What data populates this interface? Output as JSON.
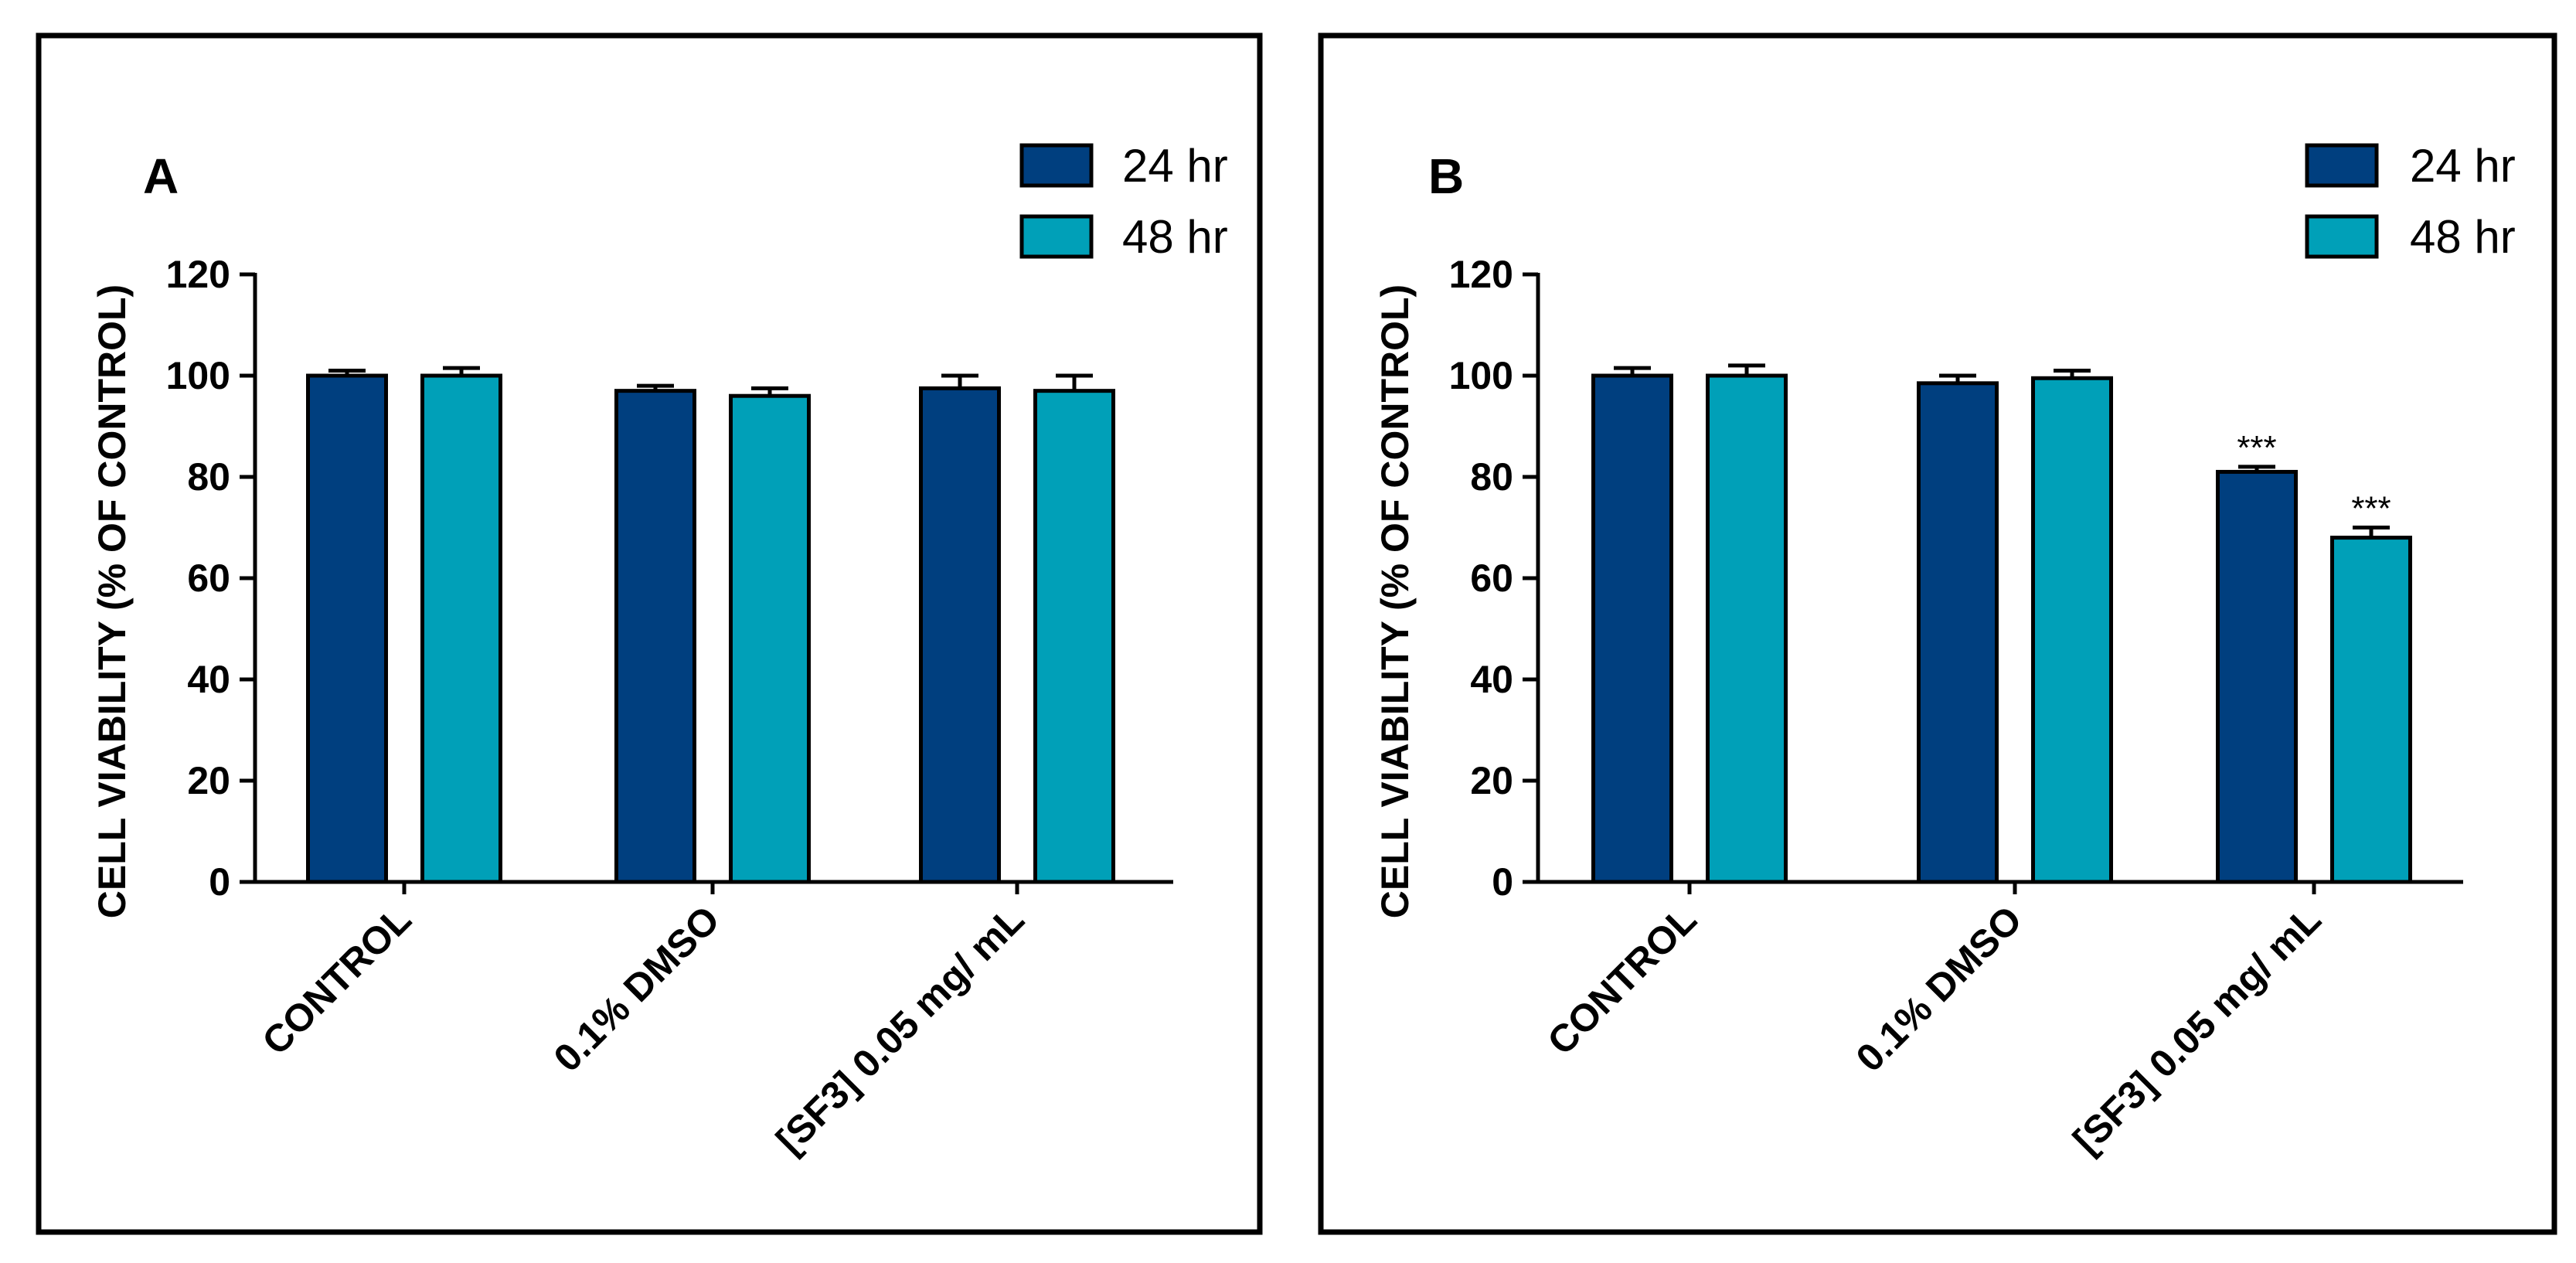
{
  "chart_data": [
    {
      "type": "bar",
      "panel": "A",
      "ylabel": "CELL VIABILITY (% OF CONTROL)",
      "xlabel": "",
      "ylim": [
        0,
        120
      ],
      "yticks": [
        0,
        20,
        40,
        60,
        80,
        100,
        120
      ],
      "categories": [
        "CONTROL",
        "0.1% DMSO",
        "[SF3] 0.05 mg/ mL"
      ],
      "series": [
        {
          "name": "24 hr",
          "values": [
            100,
            97,
            97.5
          ],
          "errors": [
            1,
            1,
            2.5
          ],
          "color": "#003f7f",
          "annotations": [
            "",
            "",
            ""
          ]
        },
        {
          "name": "48 hr",
          "values": [
            100,
            96,
            97
          ],
          "errors": [
            1.5,
            1.5,
            3
          ],
          "color": "#00a0b8",
          "annotations": [
            "",
            "",
            ""
          ]
        }
      ],
      "legend_position": "top-right"
    },
    {
      "type": "bar",
      "panel": "B",
      "ylabel": "CELL VIABILITY (% OF CONTROL)",
      "xlabel": "",
      "ylim": [
        0,
        120
      ],
      "yticks": [
        0,
        20,
        40,
        60,
        80,
        100,
        120
      ],
      "categories": [
        "CONTROL",
        "0.1% DMSO",
        "[SF3] 0.05 mg/ mL"
      ],
      "series": [
        {
          "name": "24 hr",
          "values": [
            100,
            98.5,
            81
          ],
          "errors": [
            1.5,
            1.5,
            1
          ],
          "color": "#003f7f",
          "annotations": [
            "",
            "",
            "***"
          ]
        },
        {
          "name": "48 hr",
          "values": [
            100,
            99.5,
            68
          ],
          "errors": [
            2,
            1.5,
            2
          ],
          "color": "#00a0b8",
          "annotations": [
            "",
            "",
            "***"
          ]
        }
      ],
      "legend_position": "top-right"
    }
  ]
}
